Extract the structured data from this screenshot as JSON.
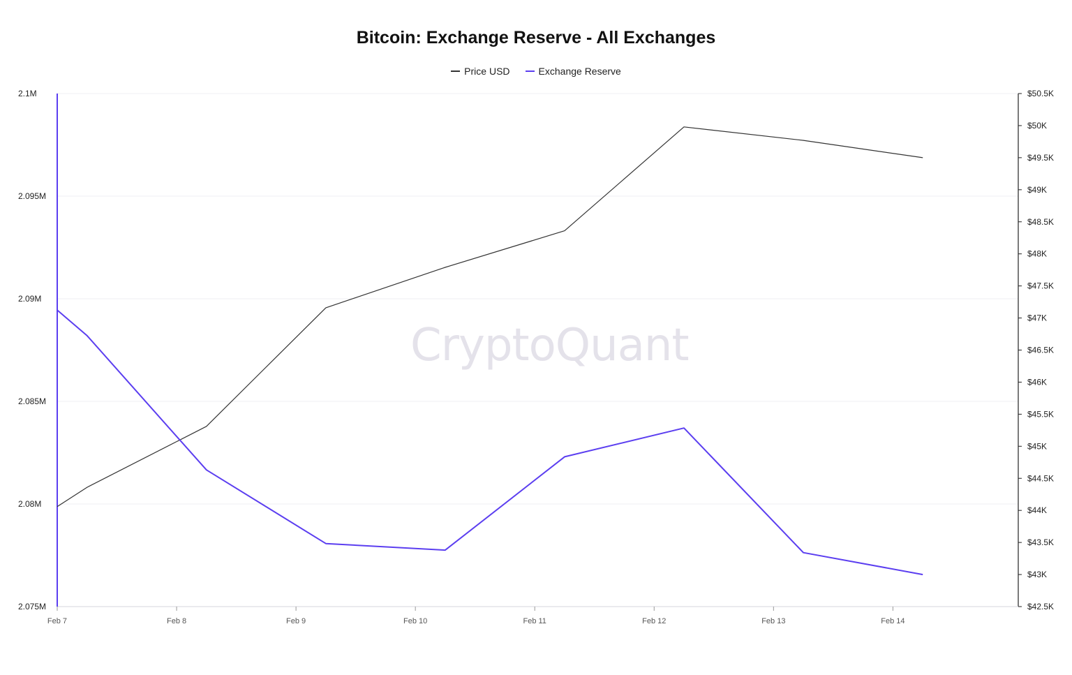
{
  "chart_data": {
    "type": "line",
    "title": "Bitcoin: Exchange Reserve - All Exchanges",
    "watermark": "CryptoQuant",
    "x_tick_labels": [
      "Feb 7",
      "Feb 8",
      "Feb 9",
      "Feb 10",
      "Feb 11",
      "Feb 12",
      "Feb 13",
      "Feb 14"
    ],
    "y_left": {
      "ticks": [
        "2.1M",
        "2.095M",
        "2.09M",
        "2.085M",
        "2.08M",
        "2.075M"
      ],
      "tick_values": [
        2100000,
        2095000,
        2090000,
        2085000,
        2080000,
        2075000
      ],
      "ylim": [
        2075000,
        2100000
      ]
    },
    "y_right": {
      "ticks": [
        "$50.5K",
        "$50K",
        "$49.5K",
        "$49K",
        "$48.5K",
        "$48K",
        "$47.5K",
        "$47K",
        "$46.5K",
        "$46K",
        "$45.5K",
        "$45K",
        "$44.5K",
        "$44K",
        "$43.5K",
        "$43K",
        "$42.5K"
      ],
      "tick_values": [
        50500,
        50000,
        49500,
        49000,
        48500,
        48000,
        47500,
        47000,
        46500,
        46000,
        45500,
        45000,
        44500,
        44000,
        43500,
        43000,
        42500
      ],
      "ylim": [
        42500,
        50500
      ]
    },
    "x_domain": [
      7,
      15.05
    ],
    "legend_placement": "top-center",
    "grid": true,
    "series": [
      {
        "name": "Price USD",
        "axis": "right",
        "color": "#333333",
        "x": [
          7.0,
          7.25,
          8.25,
          9.25,
          10.25,
          11.25,
          12.25,
          13.25,
          14.25
        ],
        "values": [
          44060,
          44360,
          45310,
          47160,
          47790,
          48360,
          49980,
          49770,
          49500
        ]
      },
      {
        "name": "Exchange Reserve",
        "axis": "left",
        "color": "#5b3ef0",
        "x": [
          7.0,
          7.25,
          8.25,
          9.25,
          10.25,
          11.25,
          12.25,
          13.25,
          14.25
        ],
        "values": [
          2089450,
          2088200,
          2081660,
          2078070,
          2077750,
          2082300,
          2083700,
          2077630,
          2076560
        ]
      }
    ]
  }
}
